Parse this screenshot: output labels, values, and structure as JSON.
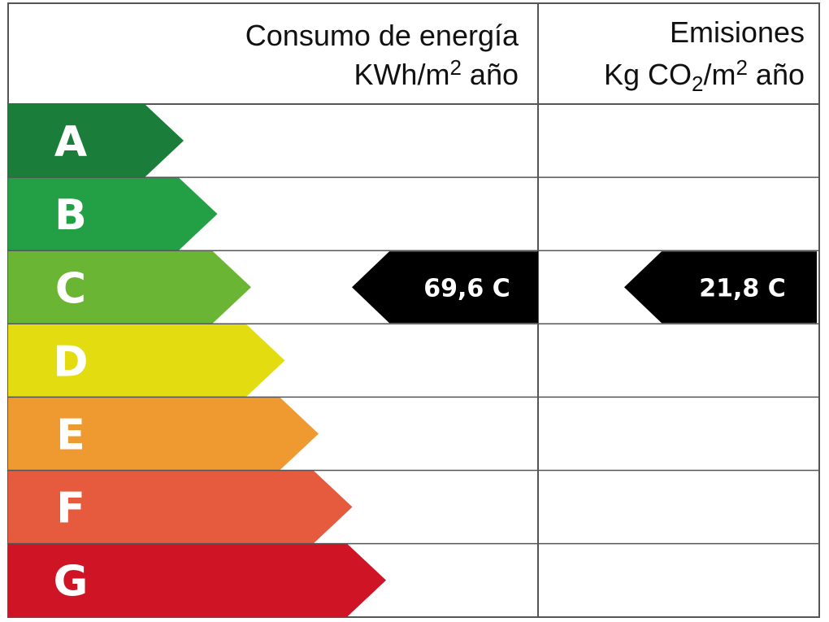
{
  "header": {
    "energy_line1": "Consumo de energía",
    "energy_line2_pre": "KWh/m",
    "energy_line2_sup": "2",
    "energy_line2_post": " año",
    "emissions_line1": "Emisiones",
    "emissions_line2_pre": "Kg CO",
    "emissions_line2_sub": "2",
    "emissions_line2_mid": "/m",
    "emissions_line2_sup": "2",
    "emissions_line2_post": " año"
  },
  "ratings": [
    {
      "letter": "A",
      "color": "#1a7d3a"
    },
    {
      "letter": "B",
      "color": "#23a045"
    },
    {
      "letter": "C",
      "color": "#6ab534"
    },
    {
      "letter": "D",
      "color": "#e2dc10"
    },
    {
      "letter": "E",
      "color": "#ee9a31"
    },
    {
      "letter": "F",
      "color": "#e65a3d"
    },
    {
      "letter": "G",
      "color": "#cf1525"
    }
  ],
  "energy_indicator": {
    "value": "69,6 C",
    "rating": "C"
  },
  "emissions_indicator": {
    "value": "21,8 C",
    "rating": "C"
  },
  "colors": {
    "indicator": "#000000",
    "grid": "#555555"
  }
}
